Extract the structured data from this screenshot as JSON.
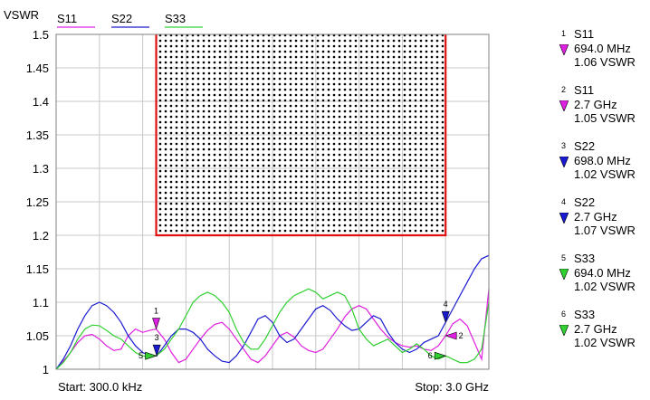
{
  "chart_data": {
    "type": "line",
    "ylabel": "VSWR",
    "ylim": [
      1,
      1.5
    ],
    "xlim_mhz": [
      0.3,
      3000
    ],
    "y_ticks": [
      "1.5",
      "1.45",
      "1.4",
      "1.35",
      "1.3",
      "1.25",
      "1.2",
      "1.15",
      "1.1",
      "1.05",
      "1"
    ],
    "start_label": "Start: 300.0 kHz",
    "stop_label": "Stop: 3.0 GHz",
    "grid": true,
    "limit_region": {
      "x_start_mhz": 694,
      "x_end_mhz": 2700,
      "vswr_min": 1.2
    },
    "series": [
      {
        "name": "S11",
        "color": "#e020e0",
        "x_mhz": [
          0.3,
          50,
          100,
          150,
          200,
          250,
          300,
          350,
          400,
          450,
          500,
          550,
          600,
          650,
          694,
          750,
          800,
          850,
          900,
          950,
          1000,
          1050,
          1100,
          1150,
          1200,
          1250,
          1300,
          1350,
          1400,
          1450,
          1500,
          1550,
          1600,
          1650,
          1700,
          1750,
          1800,
          1850,
          1900,
          1950,
          2000,
          2050,
          2100,
          2150,
          2200,
          2250,
          2300,
          2350,
          2400,
          2450,
          2500,
          2550,
          2600,
          2650,
          2700,
          2750,
          2800,
          2850,
          2900,
          2950,
          3000
        ],
        "y": [
          1.0,
          1.012,
          1.025,
          1.04,
          1.05,
          1.052,
          1.045,
          1.035,
          1.028,
          1.03,
          1.05,
          1.06,
          1.055,
          1.058,
          1.06,
          1.045,
          1.025,
          1.01,
          1.015,
          1.03,
          1.045,
          1.058,
          1.067,
          1.07,
          1.06,
          1.045,
          1.03,
          1.015,
          1.01,
          1.02,
          1.035,
          1.05,
          1.055,
          1.048,
          1.035,
          1.028,
          1.025,
          1.03,
          1.045,
          1.06,
          1.078,
          1.09,
          1.095,
          1.09,
          1.075,
          1.06,
          1.048,
          1.04,
          1.035,
          1.033,
          1.035,
          1.03,
          1.028,
          1.035,
          1.05,
          1.068,
          1.075,
          1.065,
          1.04,
          1.015,
          1.12
        ]
      },
      {
        "name": "S22",
        "color": "#1a1ad0",
        "x_mhz": [
          0.3,
          50,
          100,
          150,
          200,
          250,
          300,
          350,
          400,
          450,
          500,
          550,
          600,
          650,
          698,
          750,
          800,
          850,
          900,
          950,
          1000,
          1050,
          1100,
          1150,
          1200,
          1250,
          1300,
          1350,
          1400,
          1450,
          1500,
          1550,
          1600,
          1650,
          1700,
          1750,
          1800,
          1850,
          1900,
          1950,
          2000,
          2050,
          2100,
          2150,
          2200,
          2250,
          2300,
          2350,
          2400,
          2450,
          2500,
          2550,
          2600,
          2650,
          2700,
          2750,
          2800,
          2850,
          2900,
          2950,
          3000
        ],
        "y": [
          1.0,
          1.015,
          1.035,
          1.06,
          1.08,
          1.095,
          1.1,
          1.095,
          1.085,
          1.07,
          1.05,
          1.035,
          1.025,
          1.02,
          1.02,
          1.035,
          1.05,
          1.06,
          1.06,
          1.055,
          1.045,
          1.03,
          1.02,
          1.012,
          1.01,
          1.02,
          1.035,
          1.055,
          1.075,
          1.08,
          1.07,
          1.05,
          1.04,
          1.045,
          1.06,
          1.075,
          1.09,
          1.095,
          1.088,
          1.075,
          1.065,
          1.058,
          1.06,
          1.07,
          1.08,
          1.075,
          1.055,
          1.04,
          1.03,
          1.025,
          1.03,
          1.04,
          1.045,
          1.05,
          1.07,
          1.09,
          1.11,
          1.13,
          1.15,
          1.165,
          1.17
        ]
      },
      {
        "name": "S33",
        "color": "#30d030",
        "x_mhz": [
          0.3,
          50,
          100,
          150,
          200,
          250,
          300,
          350,
          400,
          450,
          500,
          550,
          600,
          650,
          694,
          750,
          800,
          850,
          900,
          950,
          1000,
          1050,
          1100,
          1150,
          1200,
          1250,
          1300,
          1350,
          1400,
          1450,
          1500,
          1550,
          1600,
          1650,
          1700,
          1750,
          1800,
          1850,
          1900,
          1950,
          2000,
          2050,
          2100,
          2150,
          2200,
          2250,
          2300,
          2350,
          2400,
          2450,
          2500,
          2550,
          2600,
          2650,
          2700,
          2750,
          2800,
          2850,
          2900,
          2950,
          3000
        ],
        "y": [
          1.0,
          1.01,
          1.025,
          1.045,
          1.06,
          1.066,
          1.065,
          1.058,
          1.05,
          1.045,
          1.035,
          1.025,
          1.02,
          1.018,
          1.02,
          1.03,
          1.045,
          1.06,
          1.08,
          1.1,
          1.11,
          1.115,
          1.11,
          1.1,
          1.085,
          1.06,
          1.04,
          1.03,
          1.03,
          1.045,
          1.065,
          1.085,
          1.1,
          1.11,
          1.115,
          1.12,
          1.115,
          1.105,
          1.11,
          1.115,
          1.11,
          1.09,
          1.06,
          1.045,
          1.035,
          1.04,
          1.045,
          1.035,
          1.025,
          1.03,
          1.038,
          1.03,
          1.02,
          1.015,
          1.02,
          1.015,
          1.01,
          1.01,
          1.015,
          1.03,
          1.1
        ]
      }
    ],
    "markers": [
      {
        "index": "1",
        "trace": "S11",
        "freq": "694.0 MHz",
        "value": "1.06 VSWR",
        "x_mhz": 694,
        "vswr": 1.06,
        "color": "#e020e0",
        "dir": "down"
      },
      {
        "index": "2",
        "trace": "S11",
        "freq": "2.7 GHz",
        "value": "1.05 VSWR",
        "x_mhz": 2700,
        "vswr": 1.05,
        "color": "#e020e0",
        "dir": "left"
      },
      {
        "index": "3",
        "trace": "S22",
        "freq": "698.0 MHz",
        "value": "1.02 VSWR",
        "x_mhz": 698,
        "vswr": 1.02,
        "color": "#1a1ad0",
        "dir": "down"
      },
      {
        "index": "4",
        "trace": "S22",
        "freq": "2.7 GHz",
        "value": "1.07 VSWR",
        "x_mhz": 2700,
        "vswr": 1.07,
        "color": "#1a1ad0",
        "dir": "down"
      },
      {
        "index": "5",
        "trace": "S33",
        "freq": "694.0 MHz",
        "value": "1.02 VSWR",
        "x_mhz": 694,
        "vswr": 1.02,
        "color": "#30d030",
        "dir": "right"
      },
      {
        "index": "6",
        "trace": "S33",
        "freq": "2.7 GHz",
        "value": "1.02 VSWR",
        "x_mhz": 2700,
        "vswr": 1.02,
        "color": "#30d030",
        "dir": "right"
      }
    ]
  }
}
